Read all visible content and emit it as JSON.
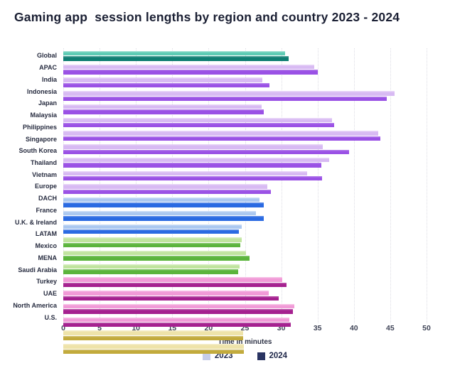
{
  "title": "Gaming app  session lengths by region and country 2023 - 2024",
  "chart_data": {
    "type": "bar",
    "orientation": "horizontal",
    "title": "Gaming app  session lengths by region and country 2023 - 2024",
    "xlabel": "Time in minutes",
    "xlim": [
      0,
      50
    ],
    "xticks": [
      0,
      5,
      10,
      15,
      20,
      25,
      30,
      35,
      40,
      45,
      50
    ],
    "grid": "vertical-dotted",
    "legend_position": "bottom-center",
    "categories": [
      "Global",
      "APAC",
      "India",
      "Indonesia",
      "Japan",
      "Malaysia",
      "Philippines",
      "Singapore",
      "South Korea",
      "Thailand",
      "Vietnam",
      "Europe",
      "DACH",
      "France",
      "U.K. & Ireland",
      "LATAM",
      "Mexico",
      "MENA",
      "Saudi Arabia",
      "Turkey",
      "UAE",
      "North America",
      "U.S."
    ],
    "category_groups": [
      "global",
      "apac",
      "apac",
      "apac",
      "apac",
      "apac",
      "apac",
      "apac",
      "apac",
      "apac",
      "apac",
      "europe",
      "europe",
      "europe",
      "green",
      "green",
      "green",
      "mena",
      "mena",
      "mena",
      "mena",
      "na",
      "na"
    ],
    "series": [
      {
        "name": "2023",
        "values": [
          30.5,
          34.5,
          27.4,
          45.6,
          27.3,
          37.0,
          43.3,
          35.7,
          36.6,
          33.6,
          28.1,
          27.0,
          26.5,
          24.6,
          24.6,
          25.1,
          24.3,
          30.1,
          28.3,
          31.8,
          31.1,
          24.8,
          24.9
        ]
      },
      {
        "name": "2024",
        "values": [
          31.0,
          35.0,
          28.4,
          44.5,
          27.6,
          37.3,
          43.6,
          39.3,
          35.5,
          35.6,
          28.6,
          27.6,
          27.6,
          24.2,
          24.4,
          25.6,
          24.1,
          30.7,
          29.6,
          31.6,
          31.3,
          24.8,
          24.9
        ]
      }
    ],
    "group_colors": {
      "global": {
        "light": "#5ecbb4",
        "dark": "#0f7e72"
      },
      "apac": {
        "light": "#d8baf3",
        "dark": "#9a51e5"
      },
      "europe": {
        "light": "#abc8f0",
        "dark": "#2a6ae2"
      },
      "green": {
        "light": "#c0e49e",
        "dark": "#5bb43c"
      },
      "mena": {
        "light": "#f19ad7",
        "dark": "#a5208f"
      },
      "na": {
        "light": "#eee3a9",
        "dark": "#c2aa3c"
      }
    },
    "legend_colors": {
      "2023": "#c6cde9",
      "2024": "#2a3462"
    }
  },
  "colors": {
    "background": "#ffffff",
    "title_text": "#1a1f33",
    "tick_text": "#3f4457",
    "category_text": "#262b3f",
    "gridline": "#dcdce4"
  }
}
